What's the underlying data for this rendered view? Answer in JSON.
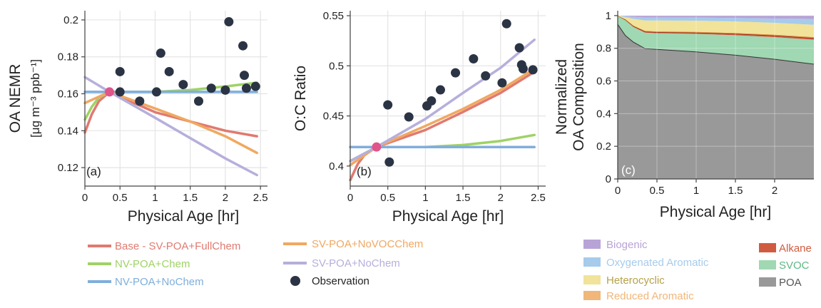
{
  "colors": {
    "base": "#e07a70",
    "nv_chem": "#9fd266",
    "nv_nochem": "#7faedb",
    "sv_novoc": "#f0a860",
    "sv_nochem": "#b6afdc",
    "obs": "#2b3444",
    "start": "#e0558a",
    "biogenic": "#b8a3d6",
    "oxy_arom": "#a6cbeb",
    "heterocyclic": "#f1e39a",
    "reduced_arom": "#f0b67a",
    "alkane": "#cf5c40",
    "svoc": "#9fd8b2",
    "poa": "#999999"
  },
  "panels": {
    "a": {
      "tag": "(a)",
      "ylabel1": "OA NEMR",
      "ylabel2": "[μg m⁻³ ppb⁻¹]",
      "xlabel": "Physical Age [hr]",
      "xticks": [
        "0",
        "0.5",
        "1",
        "1.5",
        "2",
        "2.5"
      ],
      "yticks": [
        "0.12",
        "0.14",
        "0.16",
        "0.18",
        "0.2"
      ]
    },
    "b": {
      "tag": "(b)",
      "ylabel": "O:C Ratio",
      "xlabel": "Physical Age [hr]",
      "xticks": [
        "0",
        "0.5",
        "1",
        "1.5",
        "2",
        "2.5"
      ],
      "yticks": [
        "0.4",
        "0.45",
        "0.5",
        "0.55"
      ]
    },
    "c": {
      "tag": "(c)",
      "ylabel1": "Normalized",
      "ylabel2": "OA Composition",
      "xlabel": "Physical Age [hr]",
      "xticks": [
        "0",
        "0.5",
        "1",
        "1.5",
        "2"
      ],
      "yticks": [
        "0",
        "0.2",
        "0.4",
        "0.6",
        "0.8",
        "1"
      ]
    }
  },
  "legend_lines": {
    "base": "Base - SV-POA+FullChem",
    "nv_chem": "NV-POA+Chem",
    "nv_nochem": "NV-POA+NoChem",
    "sv_novoc": "SV-POA+NoVOCChem",
    "sv_nochem": "SV-POA+NoChem",
    "obs": "Observation"
  },
  "legend_stack": {
    "biogenic": "Biogenic",
    "oxy_arom": "Oxygenated Aromatic",
    "heterocyclic": "Heterocyclic",
    "reduced_arom": "Reduced Aromatic",
    "alkane": "Alkane",
    "svoc": "SVOC",
    "poa": "POA"
  },
  "chart_data": [
    {
      "type": "line",
      "xlabel": "Physical Age [hr]",
      "ylabel": "OA NEMR [μg m⁻³ ppb⁻¹]",
      "xlim": [
        0,
        2.6
      ],
      "ylim": [
        0.11,
        0.205
      ],
      "grid": true,
      "series": [
        {
          "name": "Base - SV-POA+FullChem",
          "x": [
            0,
            0.1,
            0.2,
            0.35,
            0.7,
            1.0,
            1.5,
            2.0,
            2.45
          ],
          "y": [
            0.139,
            0.149,
            0.156,
            0.161,
            0.155,
            0.15,
            0.145,
            0.14,
            0.137
          ]
        },
        {
          "name": "NV-POA+Chem",
          "x": [
            0,
            0.1,
            0.2,
            0.35,
            1.0,
            1.5,
            2.0,
            2.45
          ],
          "y": [
            0.146,
            0.153,
            0.158,
            0.161,
            0.161,
            0.162,
            0.164,
            0.166
          ]
        },
        {
          "name": "NV-POA+NoChem",
          "x": [
            0,
            0.35,
            2.45
          ],
          "y": [
            0.161,
            0.161,
            0.161
          ]
        },
        {
          "name": "SV-POA+NoVOCChem",
          "x": [
            0,
            0.35,
            1.0,
            1.5,
            2.0,
            2.45
          ],
          "y": [
            0.155,
            0.161,
            0.152,
            0.145,
            0.137,
            0.128
          ]
        },
        {
          "name": "SV-POA+NoChem",
          "x": [
            0,
            0.35,
            1.0,
            1.5,
            2.0,
            2.45
          ],
          "y": [
            0.169,
            0.161,
            0.147,
            0.136,
            0.125,
            0.116
          ]
        },
        {
          "name": "Observation",
          "mode": "markers",
          "x": [
            0.5,
            0.5,
            0.78,
            1.02,
            1.08,
            1.2,
            1.4,
            1.62,
            1.8,
            2.0,
            2.05,
            2.25,
            2.27,
            2.3,
            2.43
          ],
          "y": [
            0.172,
            0.161,
            0.156,
            0.161,
            0.182,
            0.172,
            0.165,
            0.156,
            0.163,
            0.162,
            0.199,
            0.186,
            0.17,
            0.163,
            0.164
          ]
        }
      ]
    },
    {
      "type": "line",
      "xlabel": "Physical Age [hr]",
      "ylabel": "O:C Ratio",
      "xlim": [
        0,
        2.6
      ],
      "ylim": [
        0.38,
        0.555
      ],
      "grid": true,
      "series": [
        {
          "name": "Base - SV-POA+FullChem",
          "x": [
            0,
            0.1,
            0.2,
            0.35,
            1.0,
            1.5,
            2.0,
            2.45
          ],
          "y": [
            0.386,
            0.402,
            0.412,
            0.419,
            0.436,
            0.454,
            0.473,
            0.494
          ]
        },
        {
          "name": "NV-POA+Chem",
          "x": [
            0,
            0.35,
            1.0,
            1.5,
            2.0,
            2.45
          ],
          "y": [
            0.405,
            0.419,
            0.419,
            0.421,
            0.425,
            0.431
          ]
        },
        {
          "name": "NV-POA+NoChem",
          "x": [
            0,
            0.35,
            2.45
          ],
          "y": [
            0.419,
            0.419,
            0.419
          ]
        },
        {
          "name": "SV-POA+NoVOCChem",
          "x": [
            0,
            0.35,
            1.0,
            1.5,
            2.0,
            2.45
          ],
          "y": [
            0.401,
            0.419,
            0.44,
            0.457,
            0.476,
            0.497
          ]
        },
        {
          "name": "SV-POA+NoChem",
          "x": [
            0,
            0.35,
            1.0,
            1.5,
            2.0,
            2.45
          ],
          "y": [
            0.405,
            0.419,
            0.447,
            0.473,
            0.498,
            0.526
          ]
        },
        {
          "name": "Observation",
          "mode": "markers",
          "x": [
            0.5,
            0.52,
            0.78,
            1.02,
            1.08,
            1.2,
            1.4,
            1.64,
            1.8,
            2.02,
            2.08,
            2.25,
            2.28,
            2.3,
            2.43
          ],
          "y": [
            0.461,
            0.404,
            0.449,
            0.46,
            0.465,
            0.476,
            0.493,
            0.507,
            0.49,
            0.483,
            0.542,
            0.518,
            0.501,
            0.497,
            0.496
          ]
        }
      ]
    },
    {
      "type": "area",
      "xlabel": "Physical Age [hr]",
      "ylabel": "Normalized OA Composition",
      "xlim": [
        0,
        2.5
      ],
      "ylim": [
        0,
        1.03
      ],
      "grid": true,
      "stacked": true,
      "x": [
        0,
        0.1,
        0.2,
        0.35,
        0.5,
        1.0,
        1.5,
        2.0,
        2.5
      ],
      "series": [
        {
          "name": "POA",
          "values": [
            0.95,
            0.88,
            0.84,
            0.8,
            0.795,
            0.78,
            0.76,
            0.735,
            0.705
          ]
        },
        {
          "name": "SVOC",
          "values": [
            0.05,
            0.09,
            0.09,
            0.095,
            0.097,
            0.108,
            0.12,
            0.133,
            0.147
          ]
        },
        {
          "name": "Alkane",
          "values": [
            0,
            0.005,
            0.006,
            0.007,
            0.007,
            0.008,
            0.009,
            0.01,
            0.011
          ]
        },
        {
          "name": "Reduced Aromatic",
          "values": [
            0,
            0.002,
            0.003,
            0.004,
            0.004,
            0.004,
            0.004,
            0.005,
            0.005
          ]
        },
        {
          "name": "Heterocyclic",
          "values": [
            0,
            0.013,
            0.041,
            0.064,
            0.067,
            0.069,
            0.071,
            0.073,
            0.076
          ]
        },
        {
          "name": "Oxygenated Aromatic",
          "values": [
            0,
            0.006,
            0.012,
            0.018,
            0.018,
            0.019,
            0.021,
            0.026,
            0.036
          ]
        },
        {
          "name": "Biogenic",
          "values": [
            0,
            0.004,
            0.008,
            0.012,
            0.012,
            0.012,
            0.015,
            0.018,
            0.02
          ]
        }
      ]
    }
  ]
}
